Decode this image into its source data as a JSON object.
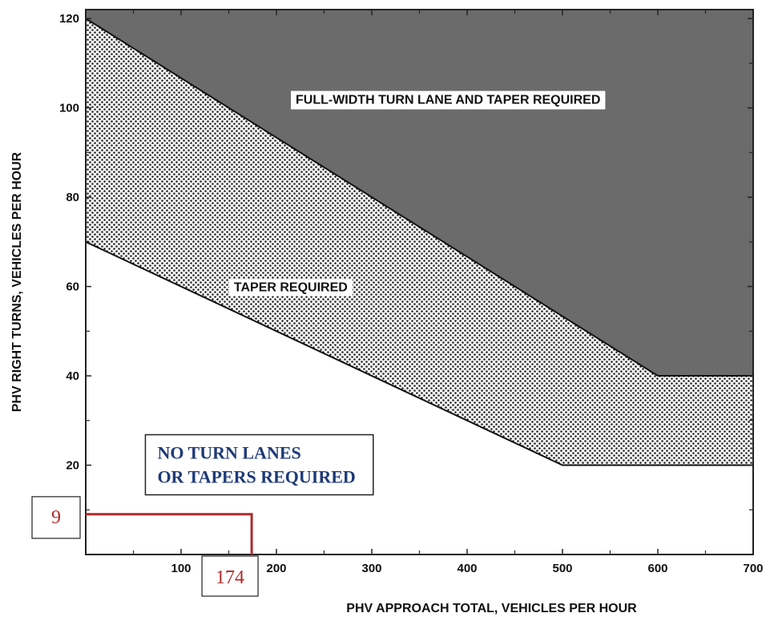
{
  "chart_data": {
    "type": "area",
    "xlabel": "PHV APPROACH TOTAL, VEHICLES PER HOUR",
    "ylabel": "PHV RIGHT TURNS, VEHICLES PER HOUR",
    "xlim": [
      0,
      700
    ],
    "ylim": [
      0,
      122
    ],
    "x_ticks": [
      100,
      200,
      300,
      400,
      500,
      600,
      700
    ],
    "y_ticks": [
      20,
      40,
      60,
      80,
      100,
      120
    ],
    "x_tick_labels": [
      "100",
      "200",
      "300",
      "400",
      "500",
      "600",
      "700"
    ],
    "y_tick_labels": [
      "20",
      "40",
      "60",
      "80",
      "100",
      "120"
    ],
    "boundaries": {
      "lower": {
        "x": [
          0,
          500,
          700
        ],
        "y": [
          70,
          20,
          20
        ]
      },
      "upper": {
        "x": [
          0,
          600,
          700
        ],
        "y": [
          120,
          40,
          40
        ]
      }
    },
    "regions": [
      {
        "label": "FULL-WIDTH TURN LANE AND TAPER REQUIRED",
        "anchor": {
          "x": 380,
          "y": 102
        },
        "fill": "#6b6b6b"
      },
      {
        "label": "TAPER REQUIRED",
        "anchor": {
          "x": 215,
          "y": 60
        },
        "fill": "dotted"
      },
      {
        "label_lines": [
          "NO TURN LANES",
          "OR TAPERS REQUIRED"
        ],
        "anchor": {
          "x": 155,
          "y": 20
        },
        "fill": "#ffffff",
        "text_color": "#1f3a78"
      }
    ],
    "annotation": {
      "x_value": 174,
      "y_value": 9,
      "x_label": "174",
      "y_label": "9",
      "color": "#b02a2a"
    }
  }
}
